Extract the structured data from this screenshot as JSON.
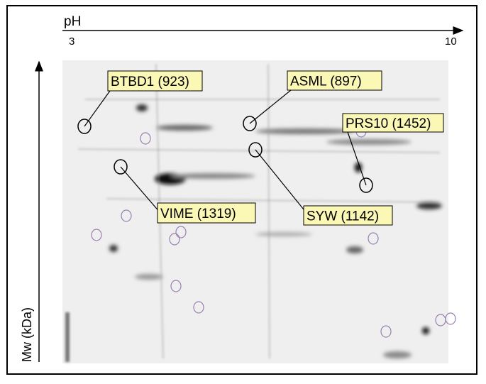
{
  "x_axis": {
    "label": "pH",
    "start": "3",
    "end": "10"
  },
  "y_axis": {
    "label": "Mw (kDa)"
  },
  "callouts": [
    {
      "label": "BTBD1 (923)"
    },
    {
      "label": "ASML (897)"
    },
    {
      "label": "PRS10 (1452)"
    },
    {
      "label": "VIME (1319)"
    },
    {
      "label": "SYW (1142)"
    }
  ]
}
